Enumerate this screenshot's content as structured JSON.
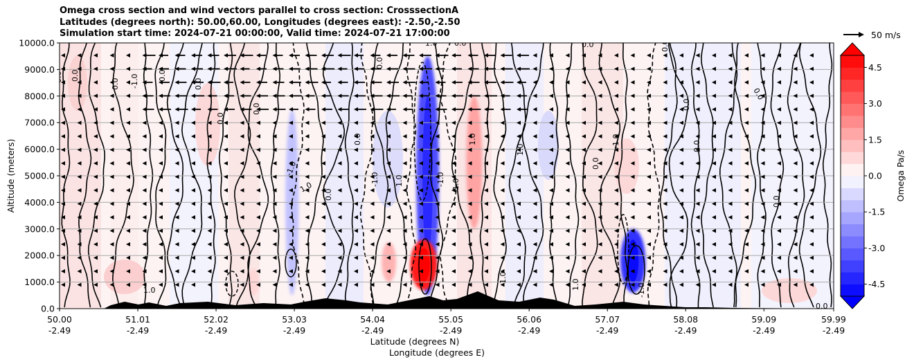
{
  "chart_data": {
    "type": "contour",
    "title_lines": [
      "Omega cross section and wind vectors parallel to cross section: CrosssectionA",
      "Latitudes (degrees north): 50.00,60.00, Longitudes (degrees east): -2.50,-2.50",
      "Simulation start time: 2024-07-21 00:00:00, Valid time: 2024-07-21 17:00:00"
    ],
    "ylabel": "Altitude (meters)",
    "xlabel_lat": "Latitude (degrees N)",
    "xlabel_lon": "Longitude (degrees E)",
    "ylim": [
      0,
      10000
    ],
    "y_ticks": [
      "0.0",
      "1000.0",
      "2000.0",
      "3000.0",
      "4000.0",
      "5000.0",
      "6000.0",
      "7000.0",
      "8000.0",
      "9000.0",
      "10000.0"
    ],
    "x_ticks_lat": [
      "50.00",
      "51.01",
      "52.02",
      "53.03",
      "54.04",
      "55.05",
      "56.06",
      "57.07",
      "58.08",
      "59.09",
      "59.99"
    ],
    "x_ticks_lon": [
      "-2.49",
      "-2.49",
      "-2.49",
      "-2.49",
      "-2.49",
      "-2.49",
      "-2.49",
      "-2.49",
      "-2.49",
      "-2.49",
      "-2.49"
    ],
    "x_tick_values": [
      50.0,
      51.01,
      52.02,
      53.03,
      54.04,
      55.05,
      56.06,
      57.07,
      58.08,
      59.09,
      59.99
    ],
    "xlim": [
      50.0,
      59.99
    ],
    "colorbar": {
      "label": "Omega Pa/s",
      "range": [
        -5,
        5
      ],
      "ticks": [
        "-4.5",
        "-3.0",
        "-1.5",
        "0.0",
        "1.5",
        "3.0",
        "4.5"
      ],
      "tick_values": [
        -4.5,
        -3.0,
        -1.5,
        0.0,
        1.5,
        3.0,
        4.5
      ]
    },
    "quiver_key": "50 m/s",
    "contour_labels": [
      "0.0",
      "1.0",
      "-1.0"
    ],
    "omega_features": [
      {
        "lat": 53.0,
        "alt_low": 500,
        "alt_high": 7500,
        "omega": -1.2
      },
      {
        "lat": 54.25,
        "alt_low": 1000,
        "alt_high": 2500,
        "omega": 1.5
      },
      {
        "lat": 54.75,
        "alt_low": 500,
        "alt_high": 9500,
        "omega": -3.5
      },
      {
        "lat": 54.7,
        "alt_low": 700,
        "alt_high": 2600,
        "omega": 4.5
      },
      {
        "lat": 55.35,
        "alt_low": 3000,
        "alt_high": 8000,
        "omega": 1.8
      },
      {
        "lat": 57.4,
        "alt_low": 600,
        "alt_high": 3000,
        "omega": -4.0
      },
      {
        "lat": 52.5,
        "alt_low": 500,
        "alt_high": 1500,
        "omega": 0.8
      }
    ]
  }
}
